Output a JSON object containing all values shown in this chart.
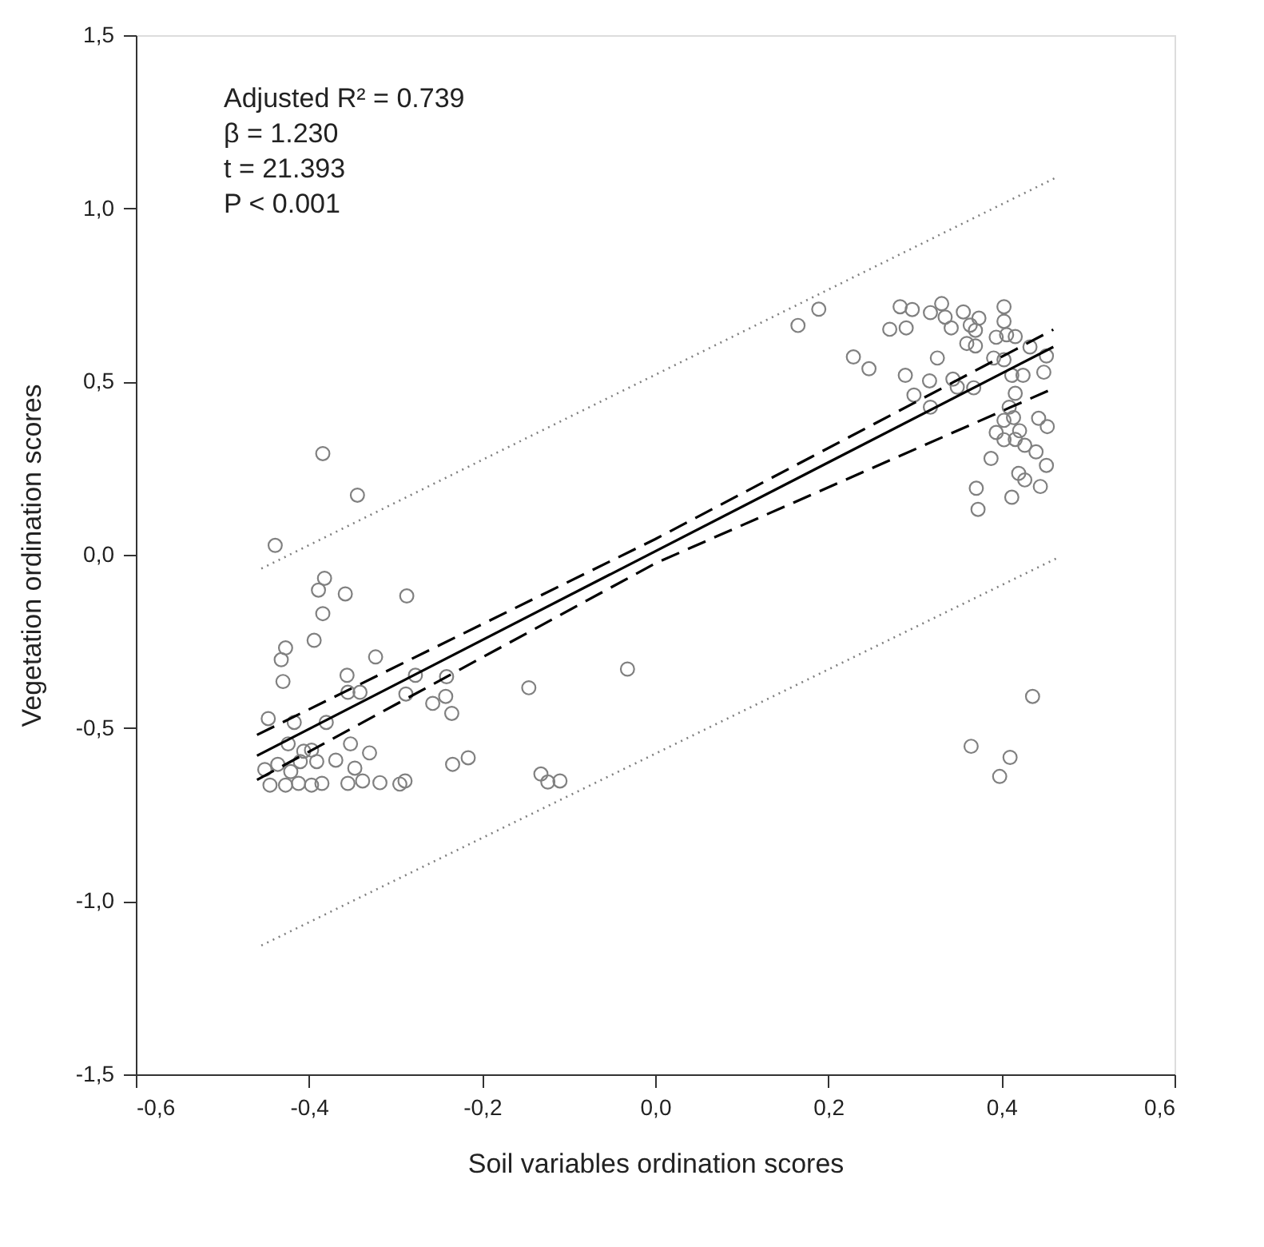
{
  "chart_data": {
    "type": "scatter",
    "xlabel": "Soil variables ordination scores",
    "ylabel": "Vegetation ordination scores",
    "annotations": [
      "Adjusted R² = 0.739",
      "β = 1.230",
      "t = 21.393",
      "P < 0.001"
    ],
    "xlim": [
      -0.6,
      0.6
    ],
    "ylim": [
      -1.5,
      1.5
    ],
    "xticks": [
      {
        "value": -0.6,
        "label": "-0,6"
      },
      {
        "value": -0.4,
        "label": "-0,4"
      },
      {
        "value": -0.2,
        "label": "-0,2"
      },
      {
        "value": 0.0,
        "label": "0,0"
      },
      {
        "value": 0.2,
        "label": "0,2"
      },
      {
        "value": 0.4,
        "label": "0,4"
      },
      {
        "value": 0.6,
        "label": "0,6"
      }
    ],
    "yticks": [
      {
        "value": -1.5,
        "label": "-1,5"
      },
      {
        "value": -1.0,
        "label": "-1,0"
      },
      {
        "value": -0.5,
        "label": "-0,5"
      },
      {
        "value": 0.0,
        "label": "0,0"
      },
      {
        "value": 0.5,
        "label": "0,5"
      },
      {
        "value": 1.0,
        "label": "1,0"
      },
      {
        "value": 1.5,
        "label": "1,5"
      }
    ],
    "grid": false,
    "series": [
      {
        "marker": "circle",
        "color": "#808080",
        "x": [
          -0.384,
          -0.344,
          -0.439,
          -0.382,
          -0.389,
          -0.358,
          -0.287,
          -0.384,
          -0.394,
          -0.427,
          -0.432,
          -0.323,
          -0.43,
          -0.356,
          -0.355,
          -0.341,
          -0.277,
          -0.241,
          -0.288,
          -0.242,
          -0.257,
          -0.235,
          -0.447,
          -0.417,
          -0.38,
          -0.424,
          -0.352,
          -0.406,
          -0.397,
          -0.33,
          -0.369,
          -0.347,
          -0.451,
          -0.436,
          -0.41,
          -0.391,
          -0.234,
          -0.216,
          -0.445,
          -0.427,
          -0.412,
          -0.397,
          -0.385,
          -0.355,
          -0.338,
          -0.318,
          -0.295,
          -0.289,
          -0.421,
          -0.146,
          -0.032,
          -0.132,
          -0.124,
          -0.11,
          0.165,
          0.189,
          0.229,
          0.247,
          0.271,
          0.283,
          0.297,
          0.29,
          0.318,
          0.331,
          0.335,
          0.342,
          0.356,
          0.364,
          0.374,
          0.37,
          0.36,
          0.37,
          0.403,
          0.403,
          0.394,
          0.406,
          0.416,
          0.433,
          0.391,
          0.403,
          0.326,
          0.289,
          0.317,
          0.344,
          0.349,
          0.368,
          0.299,
          0.318,
          0.412,
          0.425,
          0.416,
          0.452,
          0.449,
          0.409,
          0.414,
          0.403,
          0.443,
          0.394,
          0.421,
          0.403,
          0.416,
          0.427,
          0.453,
          0.44,
          0.388,
          0.452,
          0.42,
          0.427,
          0.445,
          0.371,
          0.412,
          0.373,
          0.436,
          0.365,
          0.41,
          0.398
        ],
        "values": [
          0.292,
          0.172,
          0.027,
          -0.068,
          -0.102,
          -0.113,
          -0.119,
          -0.17,
          -0.247,
          -0.269,
          -0.303,
          -0.295,
          -0.366,
          -0.348,
          -0.397,
          -0.397,
          -0.348,
          -0.352,
          -0.402,
          -0.409,
          -0.429,
          -0.458,
          -0.473,
          -0.484,
          -0.484,
          -0.546,
          -0.546,
          -0.567,
          -0.564,
          -0.572,
          -0.593,
          -0.616,
          -0.62,
          -0.605,
          -0.597,
          -0.597,
          -0.605,
          -0.586,
          -0.665,
          -0.665,
          -0.66,
          -0.665,
          -0.66,
          -0.66,
          -0.653,
          -0.658,
          -0.662,
          -0.653,
          -0.626,
          -0.384,
          -0.33,
          -0.633,
          -0.656,
          -0.653,
          0.662,
          0.709,
          0.571,
          0.537,
          0.651,
          0.716,
          0.708,
          0.655,
          0.699,
          0.725,
          0.686,
          0.655,
          0.701,
          0.663,
          0.683,
          0.648,
          0.61,
          0.603,
          0.716,
          0.674,
          0.628,
          0.635,
          0.63,
          0.6,
          0.568,
          0.563,
          0.568,
          0.518,
          0.502,
          0.507,
          0.484,
          0.482,
          0.461,
          0.426,
          0.518,
          0.518,
          0.466,
          0.574,
          0.527,
          0.426,
          0.396,
          0.388,
          0.394,
          0.353,
          0.358,
          0.332,
          0.333,
          0.316,
          0.37,
          0.297,
          0.278,
          0.258,
          0.235,
          0.216,
          0.197,
          0.192,
          0.166,
          0.131,
          -0.409,
          -0.553,
          -0.585,
          -0.64
        ]
      },
      {
        "type": "line",
        "color": "#000000",
        "line_style": "solid",
        "x": [
          -0.46,
          0.46
        ],
        "values": [
          -0.58,
          0.6
        ]
      },
      {
        "type": "line",
        "color": "#000000",
        "line_style": "dashed",
        "x": [
          -0.46,
          0.0,
          0.46
        ],
        "values": [
          -0.52,
          0.045,
          0.65
        ]
      },
      {
        "type": "line",
        "color": "#000000",
        "line_style": "dashed",
        "x": [
          -0.46,
          0.0,
          0.46
        ],
        "values": [
          -0.65,
          -0.025,
          0.48
        ]
      },
      {
        "type": "line",
        "color": "#808080",
        "line_style": "dotted",
        "x": [
          -0.455,
          0.464
        ],
        "values": [
          -0.04,
          1.09
        ]
      },
      {
        "type": "line",
        "color": "#808080",
        "line_style": "dotted",
        "x": [
          -0.455,
          0.464
        ],
        "values": [
          -1.128,
          -0.01
        ]
      }
    ]
  }
}
